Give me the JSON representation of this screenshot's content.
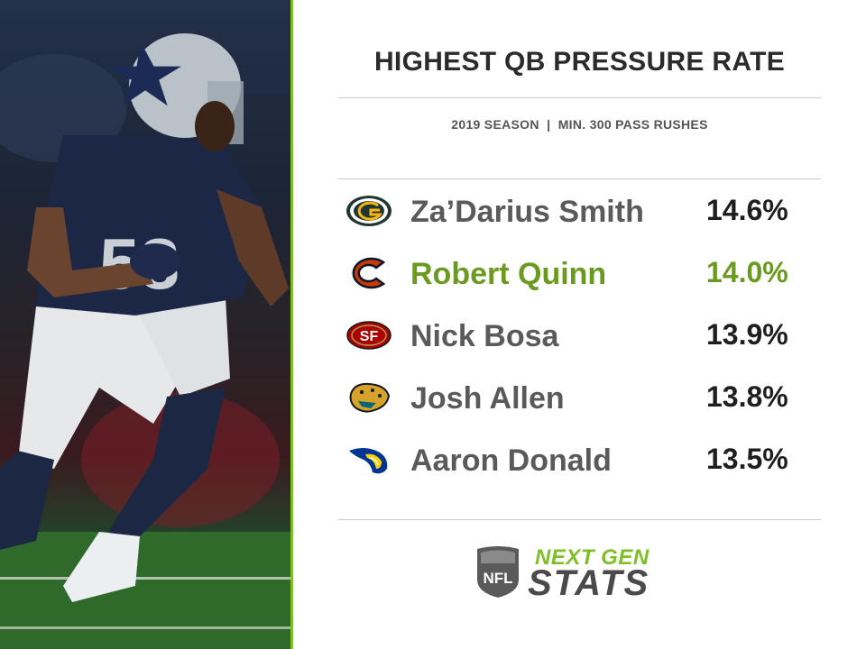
{
  "chart_data": {
    "type": "table",
    "title": "HIGHEST QB PRESSURE RATE",
    "subtitle": "2019 SEASON  |  MIN. 300 PASS RUSHES",
    "rows": [
      {
        "player": "Za’Darius Smith",
        "value": "14.6%",
        "logo": "packers-logo-icon",
        "highlight": false
      },
      {
        "player": "Robert Quinn",
        "value": "14.0%",
        "logo": "bears-logo-icon",
        "highlight": true
      },
      {
        "player": "Nick Bosa",
        "value": "13.9%",
        "logo": "49ers-logo-icon",
        "highlight": false
      },
      {
        "player": "Josh Allen",
        "value": "13.8%",
        "logo": "jaguars-logo-icon",
        "highlight": false
      },
      {
        "player": "Aaron Donald",
        "value": "13.5%",
        "logo": "rams-logo-icon",
        "highlight": false
      }
    ],
    "values_numeric": [
      14.6,
      14.0,
      13.9,
      13.8,
      13.5
    ]
  },
  "photo": {
    "jersey_number": "58"
  },
  "branding": {
    "line1": "NEXT GEN",
    "line2": "STATS",
    "shield_text": "NFL"
  },
  "colors": {
    "accent": "#7fbf2a",
    "highlight": "#6a9a1f",
    "text_dark": "#1e1e1e",
    "text_name": "#5a5a5a"
  }
}
